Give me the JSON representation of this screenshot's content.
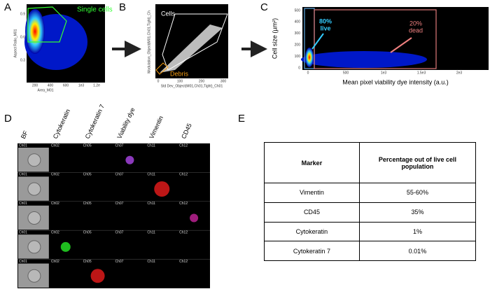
{
  "panels": {
    "a": {
      "label": "A",
      "y_label": "Aspect Ratio_M01",
      "x_label": "Area_M01",
      "yticks": [
        "0.9",
        "0.6",
        "0.3"
      ],
      "xticks": [
        "200",
        "400",
        "600",
        "1e3",
        "1.2e"
      ],
      "gate": "Single cells"
    },
    "b": {
      "label": "B",
      "y_label": "Modulation_Object(M01,Ch01,Tight)_Ch",
      "x_label": "Std Dev_Object(M01,Ch01,Tight)_Ch01",
      "xticks": [
        "0",
        "100",
        "200",
        "300"
      ],
      "gate_cells": "Cells",
      "gate_debris": "Debris"
    },
    "c": {
      "label": "C",
      "y_label": "Cell size (µm²)",
      "x_label": "Mean pixel viability dye intensity (a.u.)",
      "yticks": [
        "500",
        "400",
        "300",
        "200",
        "100",
        "0"
      ],
      "xticks": [
        "0",
        "500",
        "1e3",
        "1.5e3",
        "2e3"
      ],
      "live": [
        "80%",
        "live"
      ],
      "dead": [
        "20%",
        "dead"
      ]
    },
    "d": {
      "label": "D",
      "columns": [
        "BF",
        "Cytokeratin",
        "Cytokeratin 7",
        "Viability dye",
        "Vimentin",
        "CD45"
      ],
      "channels": [
        "Ch01",
        "Ch02",
        "Ch05",
        "Ch07",
        "Ch11",
        "Ch12"
      ]
    },
    "e": {
      "label": "E",
      "table": {
        "header": [
          "Marker",
          "Percentage out of live cell population"
        ],
        "rows": [
          [
            "Vimentin",
            "55-60%"
          ],
          [
            "CD45",
            "35%"
          ],
          [
            "Cytokeratin",
            "1%"
          ],
          [
            "Cytokeratin 7",
            "0.01%"
          ]
        ]
      }
    }
  }
}
